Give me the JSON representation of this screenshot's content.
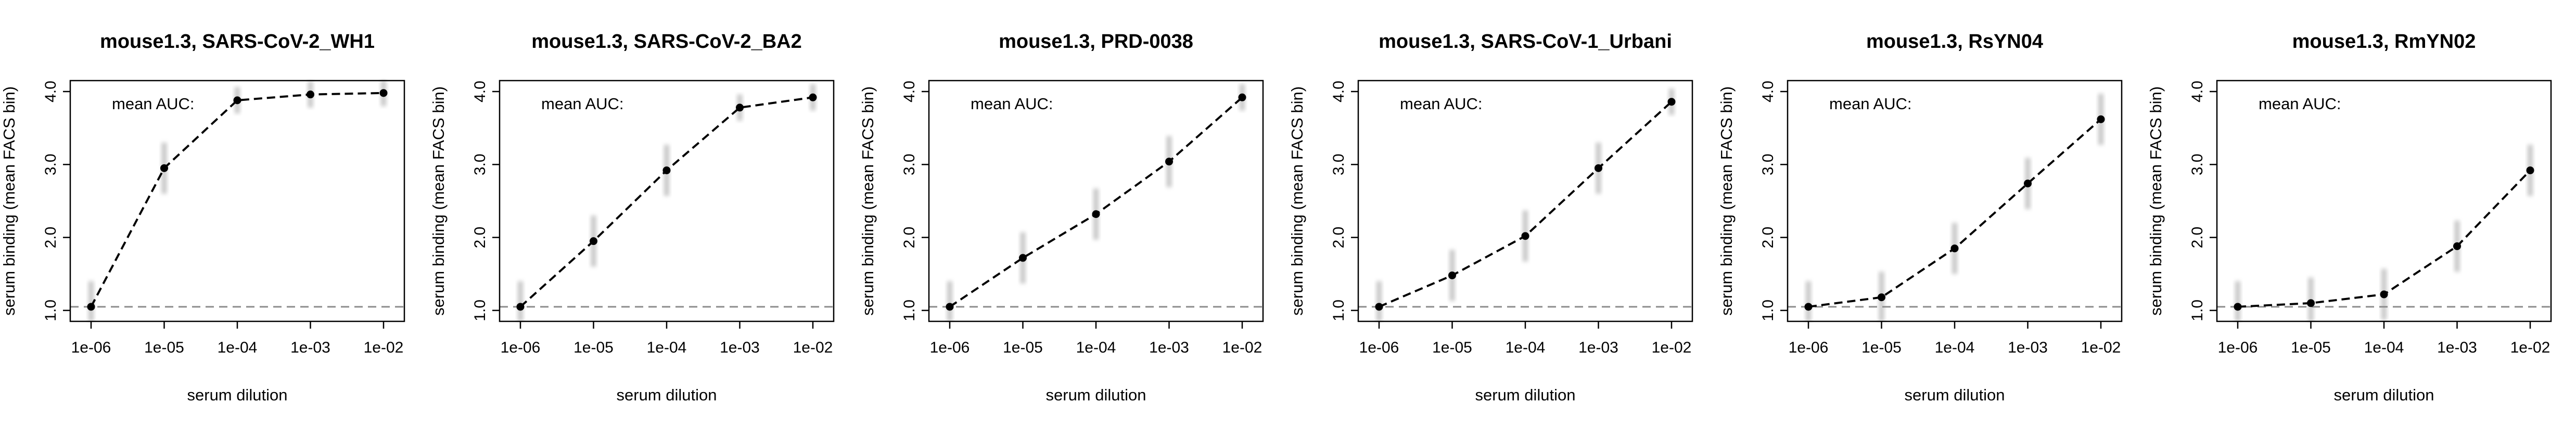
{
  "chart_data": [
    {
      "type": "line",
      "title": "mouse1.3, SARS-CoV-2_WH1",
      "xlabel": "serum dilution",
      "ylabel": "serum binding (mean FACS bin)",
      "annotation": "mean AUC:",
      "xscale": "log",
      "x_ticks": [
        "1e-06",
        "1e-05",
        "1e-04",
        "1e-03",
        "1e-02"
      ],
      "y_ticks": [
        "1.0",
        "2.0",
        "3.0",
        "4.0"
      ],
      "ylim": [
        0.85,
        4.15
      ],
      "baseline": 1.05,
      "x": [
        1e-06,
        1e-05,
        0.0001,
        0.001,
        0.01
      ],
      "y": [
        1.05,
        2.95,
        3.88,
        3.96,
        3.98
      ]
    },
    {
      "type": "line",
      "title": "mouse1.3, SARS-CoV-2_BA2",
      "xlabel": "serum dilution",
      "ylabel": "serum binding (mean FACS bin)",
      "annotation": "mean AUC:",
      "xscale": "log",
      "x_ticks": [
        "1e-06",
        "1e-05",
        "1e-04",
        "1e-03",
        "1e-02"
      ],
      "y_ticks": [
        "1.0",
        "2.0",
        "3.0",
        "4.0"
      ],
      "ylim": [
        0.85,
        4.15
      ],
      "baseline": 1.05,
      "x": [
        1e-06,
        1e-05,
        0.0001,
        0.001,
        0.01
      ],
      "y": [
        1.05,
        1.95,
        2.92,
        3.78,
        3.92
      ]
    },
    {
      "type": "line",
      "title": "mouse1.3, PRD-0038",
      "xlabel": "serum dilution",
      "ylabel": "serum binding (mean FACS bin)",
      "annotation": "mean AUC:",
      "xscale": "log",
      "x_ticks": [
        "1e-06",
        "1e-05",
        "1e-04",
        "1e-03",
        "1e-02"
      ],
      "y_ticks": [
        "1.0",
        "2.0",
        "3.0",
        "4.0"
      ],
      "ylim": [
        0.85,
        4.15
      ],
      "baseline": 1.05,
      "x": [
        1e-06,
        1e-05,
        0.0001,
        0.001,
        0.01
      ],
      "y": [
        1.05,
        1.72,
        2.32,
        3.04,
        3.92
      ]
    },
    {
      "type": "line",
      "title": "mouse1.3, SARS-CoV-1_Urbani",
      "xlabel": "serum dilution",
      "ylabel": "serum binding (mean FACS bin)",
      "annotation": "mean AUC:",
      "xscale": "log",
      "x_ticks": [
        "1e-06",
        "1e-05",
        "1e-04",
        "1e-03",
        "1e-02"
      ],
      "y_ticks": [
        "1.0",
        "2.0",
        "3.0",
        "4.0"
      ],
      "ylim": [
        0.85,
        4.15
      ],
      "baseline": 1.05,
      "x": [
        1e-06,
        1e-05,
        0.0001,
        0.001,
        0.01
      ],
      "y": [
        1.05,
        1.48,
        2.02,
        2.95,
        3.86
      ]
    },
    {
      "type": "line",
      "title": "mouse1.3, RsYN04",
      "xlabel": "serum dilution",
      "ylabel": "serum binding (mean FACS bin)",
      "annotation": "mean AUC:",
      "xscale": "log",
      "x_ticks": [
        "1e-06",
        "1e-05",
        "1e-04",
        "1e-03",
        "1e-02"
      ],
      "y_ticks": [
        "1.0",
        "2.0",
        "3.0",
        "4.0"
      ],
      "ylim": [
        0.85,
        4.15
      ],
      "baseline": 1.05,
      "x": [
        1e-06,
        1e-05,
        0.0001,
        0.001,
        0.01
      ],
      "y": [
        1.05,
        1.18,
        1.85,
        2.74,
        3.62
      ]
    },
    {
      "type": "line",
      "title": "mouse1.3, RmYN02",
      "xlabel": "serum dilution",
      "ylabel": "serum binding (mean FACS bin)",
      "annotation": "mean AUC:",
      "xscale": "log",
      "x_ticks": [
        "1e-06",
        "1e-05",
        "1e-04",
        "1e-03",
        "1e-02"
      ],
      "y_ticks": [
        "1.0",
        "2.0",
        "3.0",
        "4.0"
      ],
      "ylim": [
        0.85,
        4.15
      ],
      "baseline": 1.05,
      "x": [
        1e-06,
        1e-05,
        0.0001,
        0.001,
        0.01
      ],
      "y": [
        1.05,
        1.1,
        1.22,
        1.88,
        2.92
      ]
    }
  ]
}
